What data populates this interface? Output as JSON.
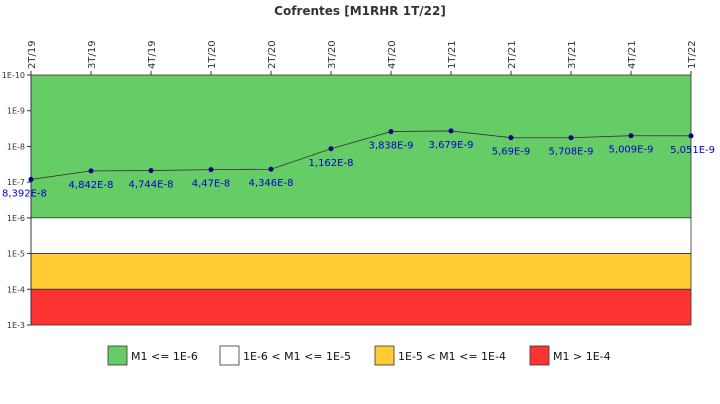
{
  "chart_data": {
    "type": "line",
    "title": "Cofrentes [M1RHR 1T/22]",
    "categories": [
      "2T/19",
      "3T/19",
      "4T/19",
      "1T/20",
      "2T/20",
      "3T/20",
      "4T/20",
      "1T/21",
      "2T/21",
      "3T/21",
      "4T/21",
      "1T/22"
    ],
    "series": [
      {
        "values": [
          8.392e-08,
          4.842e-08,
          4.744e-08,
          4.47e-08,
          4.346e-08,
          1.162e-08,
          3.838e-09,
          3.679e-09,
          5.69e-09,
          5.708e-09,
          5.009e-09,
          5.051e-09
        ],
        "point_labels": [
          "8,392E-8",
          "4,842E-8",
          "4,744E-8",
          "4,47E-8",
          "4,346E-8",
          "1,162E-8",
          "3,838E-9",
          "3,679E-9",
          "5,69E-9",
          "5,708E-9",
          "5,009E-9",
          "5,051E-9"
        ],
        "color": "#00008b"
      }
    ],
    "y_axis": {
      "scale": "log",
      "inverted": true,
      "min": 1e-10,
      "max": 0.001,
      "tick_labels": [
        "1E-10",
        "1E-9",
        "1E-8",
        "1E-7",
        "1E-6",
        "1E-5",
        "1E-4",
        "1E-3"
      ]
    },
    "bands": [
      {
        "from": 1e-10,
        "to": 1e-06,
        "color": "#66cc66",
        "label": "M1 <= 1E-6"
      },
      {
        "from": 1e-06,
        "to": 1e-05,
        "color": "#ffffff",
        "label": "1E-6 < M1 <= 1E-5"
      },
      {
        "from": 1e-05,
        "to": 0.0001,
        "color": "#ffcc33",
        "label": "1E-5 < M1 <= 1E-4"
      },
      {
        "from": 0.0001,
        "to": 0.001,
        "color": "#ff3333",
        "label": "M1 > 1E-4"
      }
    ],
    "label_color": "#0000cc",
    "legend_position": "bottom",
    "grid": false
  }
}
